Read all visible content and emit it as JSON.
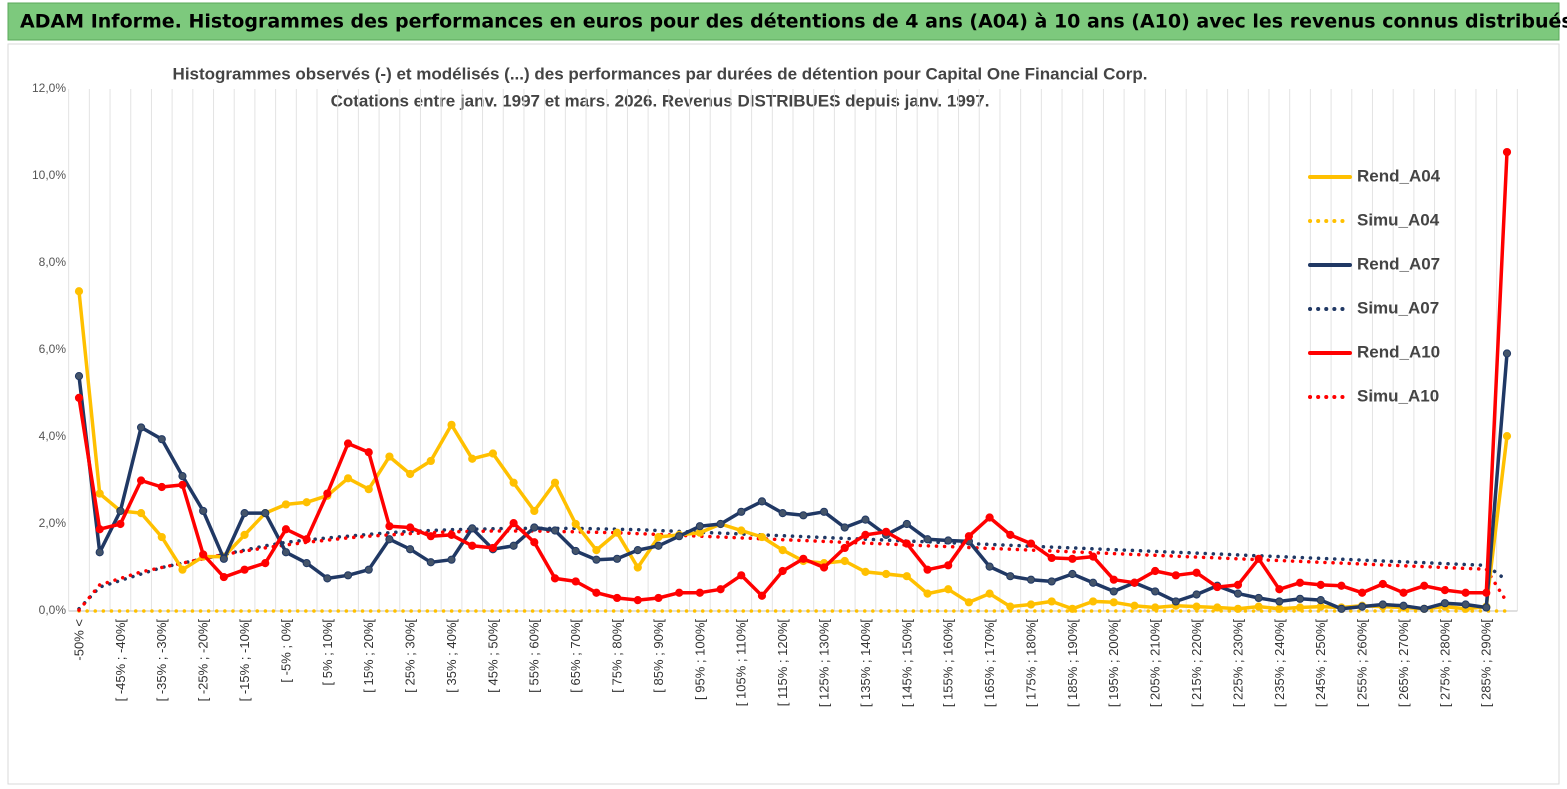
{
  "header": {
    "title": "ADAM Informe. Histogrammes des performances en euros pour des détentions de 4 ans (A04) à 10 ans (A10) avec les revenus connus distribués"
  },
  "chart_data": {
    "type": "line",
    "title": "Histogrammes observés (-) et modélisés (...) des performances par durées de détention pour Capital One Financial Corp.",
    "subtitle": "Cotations entre janv. 1997 et mars. 2026. Revenus DISTRIBUES depuis janv. 1997.",
    "categories": [
      "-50% <",
      null,
      "[ -45% ; -40%[",
      null,
      "[ -35% ; -30%[",
      null,
      "[ -25% ; -20%[",
      null,
      "[ -15% ; -10%[",
      null,
      "[ -5% ; 0%[",
      null,
      "[ 5% ; 10%[",
      null,
      "[ 15% ; 20%[",
      null,
      "[ 25% ; 30%[",
      null,
      "[ 35% ; 40%[",
      null,
      "[ 45% ; 50%[",
      null,
      "[ 55% ; 60%[",
      null,
      "[ 65% ; 70%[",
      null,
      "[ 75% ; 80%[",
      null,
      "[ 85% ; 90%[",
      null,
      "[ 95% ; 100%[",
      null,
      "[ 105% ; 110%[",
      null,
      "[ 115% ; 120%[",
      null,
      "[ 125% ; 130%[",
      null,
      "[ 135% ; 140%[",
      null,
      "[ 145% ; 150%[",
      null,
      "[ 155% ; 160%[",
      null,
      "[ 165% ; 170%[",
      null,
      "[ 175% ; 180%[",
      null,
      "[ 185% ; 190%[",
      null,
      "[ 195% ; 200%[",
      null,
      "[ 205% ; 210%[",
      null,
      "[ 215% ; 220%[",
      null,
      "[ 225% ; 230%[",
      null,
      "[ 235% ; 240%[",
      null,
      "[ 245% ; 250%[",
      null,
      "[ 255% ; 260%[",
      null,
      "[ 265% ; 270%[",
      null,
      "[ 275% ; 280%[",
      null,
      "[ 285% ; 290%[",
      null
    ],
    "series": [
      {
        "name": "Rend_A04",
        "color": "#ffc000",
        "line_style": "solid",
        "markers": true,
        "values": [
          7.35,
          2.7,
          2.3,
          2.25,
          1.7,
          0.95,
          1.25,
          1.25,
          1.75,
          2.25,
          2.45,
          2.5,
          2.65,
          3.05,
          2.8,
          3.55,
          3.15,
          3.45,
          4.28,
          3.5,
          3.62,
          2.95,
          2.3,
          2.95,
          2.0,
          1.4,
          1.8,
          1.0,
          1.7,
          1.75,
          1.8,
          2.0,
          1.85,
          1.7,
          1.4,
          1.15,
          1.1,
          1.15,
          0.9,
          0.85,
          0.8,
          0.4,
          0.5,
          0.2,
          0.4,
          0.1,
          0.15,
          0.22,
          0.05,
          0.22,
          0.2,
          0.12,
          0.08,
          0.12,
          0.1,
          0.08,
          0.05,
          0.1,
          0.05,
          0.08,
          0.1,
          0.08,
          0.12,
          0.1,
          0.08,
          0.05,
          0.1,
          0.05,
          0.1,
          4.02
        ]
      },
      {
        "name": "Simu_A04",
        "color": "#ffc000",
        "line_style": "dotted",
        "markers": false,
        "values": [
          0,
          0,
          0,
          0,
          0,
          0,
          0,
          0,
          0,
          0,
          0,
          0,
          0,
          0,
          0,
          0,
          0,
          0,
          0,
          0,
          0,
          0,
          0,
          0,
          0,
          0,
          0,
          0,
          0,
          0,
          0,
          0,
          0,
          0,
          0,
          0,
          0,
          0,
          0,
          0,
          0,
          0,
          0,
          0,
          0,
          0,
          0,
          0,
          0,
          0,
          0,
          0,
          0,
          0,
          0,
          0,
          0,
          0,
          0,
          0,
          0,
          0,
          0,
          0,
          0,
          0,
          0,
          0,
          0,
          0
        ]
      },
      {
        "name": "Rend_A07",
        "color": "#203864",
        "line_style": "solid",
        "markers": true,
        "values": [
          5.4,
          1.35,
          2.3,
          4.22,
          3.95,
          3.1,
          2.3,
          1.2,
          2.25,
          2.25,
          1.35,
          1.1,
          0.75,
          0.82,
          0.95,
          1.65,
          1.42,
          1.12,
          1.18,
          1.9,
          1.42,
          1.5,
          1.92,
          1.85,
          1.38,
          1.18,
          1.2,
          1.4,
          1.5,
          1.72,
          1.95,
          2.0,
          2.28,
          2.52,
          2.25,
          2.2,
          2.28,
          1.92,
          2.1,
          1.75,
          2.0,
          1.65,
          1.62,
          1.6,
          1.02,
          0.8,
          0.72,
          0.68,
          0.85,
          0.65,
          0.45,
          0.65,
          0.45,
          0.22,
          0.38,
          0.58,
          0.4,
          0.3,
          0.22,
          0.28,
          0.25,
          0.05,
          0.1,
          0.15,
          0.12,
          0.05,
          0.18,
          0.15,
          0.08,
          5.92
        ]
      },
      {
        "name": "Simu_A07",
        "color": "#203864",
        "line_style": "dotted",
        "markers": false,
        "values": [
          0.05,
          0.55,
          0.7,
          0.85,
          1.0,
          1.1,
          1.2,
          1.3,
          1.4,
          1.5,
          1.58,
          1.63,
          1.68,
          1.72,
          1.76,
          1.8,
          1.83,
          1.85,
          1.87,
          1.88,
          1.89,
          1.9,
          1.9,
          1.9,
          1.9,
          1.89,
          1.88,
          1.87,
          1.85,
          1.83,
          1.81,
          1.79,
          1.77,
          1.75,
          1.73,
          1.71,
          1.69,
          1.67,
          1.65,
          1.63,
          1.61,
          1.59,
          1.57,
          1.55,
          1.53,
          1.51,
          1.49,
          1.47,
          1.45,
          1.43,
          1.41,
          1.39,
          1.37,
          1.35,
          1.33,
          1.31,
          1.29,
          1.27,
          1.25,
          1.23,
          1.21,
          1.19,
          1.17,
          1.15,
          1.13,
          1.11,
          1.09,
          1.07,
          1.05,
          0.7
        ]
      },
      {
        "name": "Rend_A10",
        "color": "#ff0000",
        "line_style": "solid",
        "markers": true,
        "values": [
          4.9,
          1.88,
          2.0,
          3.0,
          2.85,
          2.9,
          1.3,
          0.78,
          0.95,
          1.1,
          1.88,
          1.65,
          2.7,
          3.85,
          3.65,
          1.95,
          1.92,
          1.72,
          1.75,
          1.5,
          1.45,
          2.02,
          1.58,
          0.75,
          0.68,
          0.42,
          0.3,
          0.25,
          0.3,
          0.42,
          0.42,
          0.5,
          0.82,
          0.35,
          0.92,
          1.2,
          1.0,
          1.45,
          1.75,
          1.82,
          1.55,
          0.95,
          1.05,
          1.72,
          2.15,
          1.75,
          1.55,
          1.22,
          1.2,
          1.25,
          0.72,
          0.65,
          0.92,
          0.82,
          0.88,
          0.55,
          0.6,
          1.2,
          0.5,
          0.65,
          0.6,
          0.58,
          0.42,
          0.62,
          0.42,
          0.58,
          0.48,
          0.42,
          0.42,
          10.55
        ]
      },
      {
        "name": "Simu_A10",
        "color": "#ff0000",
        "line_style": "dotted",
        "markers": false,
        "values": [
          0.02,
          0.6,
          0.75,
          0.9,
          1.0,
          1.1,
          1.2,
          1.3,
          1.38,
          1.45,
          1.52,
          1.58,
          1.63,
          1.68,
          1.72,
          1.75,
          1.78,
          1.8,
          1.82,
          1.83,
          1.84,
          1.84,
          1.84,
          1.83,
          1.82,
          1.81,
          1.8,
          1.78,
          1.76,
          1.74,
          1.72,
          1.7,
          1.68,
          1.66,
          1.64,
          1.62,
          1.6,
          1.58,
          1.56,
          1.54,
          1.52,
          1.5,
          1.48,
          1.46,
          1.44,
          1.42,
          1.4,
          1.38,
          1.36,
          1.34,
          1.32,
          1.3,
          1.28,
          1.26,
          1.24,
          1.22,
          1.2,
          1.18,
          1.16,
          1.14,
          1.12,
          1.1,
          1.08,
          1.06,
          1.04,
          1.02,
          1.0,
          0.98,
          0.96,
          0.2
        ]
      }
    ],
    "ylim": [
      0,
      12
    ],
    "yticks": [
      {
        "value": 0,
        "label": "0,0%"
      },
      {
        "value": 2,
        "label": "2,0%"
      },
      {
        "value": 4,
        "label": "4,0%"
      },
      {
        "value": 6,
        "label": "6,0%"
      },
      {
        "value": 8,
        "label": "8,0%"
      },
      {
        "value": 10,
        "label": "10,0%"
      },
      {
        "value": 12,
        "label": "12,0%"
      }
    ],
    "grid": "vertical",
    "legend": "right"
  }
}
